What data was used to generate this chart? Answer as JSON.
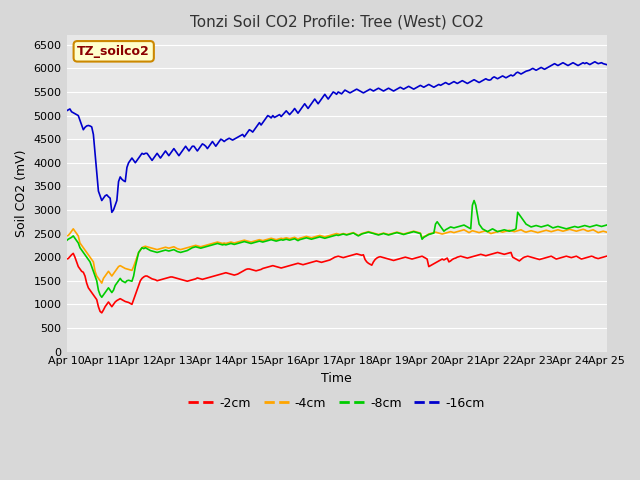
{
  "title": "Tonzi Soil CO2 Profile: Tree (West) CO2",
  "ylabel": "Soil CO2 (mV)",
  "xlabel": "Time",
  "legend_label": "TZ_soilco2",
  "series_labels": [
    "-2cm",
    "-4cm",
    "-8cm",
    "-16cm"
  ],
  "series_colors": [
    "#ff0000",
    "#ffa500",
    "#00cc00",
    "#0000cc"
  ],
  "ylim": [
    0,
    6700
  ],
  "yticks": [
    0,
    500,
    1000,
    1500,
    2000,
    2500,
    3000,
    3500,
    4000,
    4500,
    5000,
    5500,
    6000,
    6500
  ],
  "xtick_labels": [
    "Apr 10",
    "Apr 11",
    "Apr 12",
    "Apr 13",
    "Apr 14",
    "Apr 15",
    "Apr 16",
    "Apr 17",
    "Apr 18",
    "Apr 19",
    "Apr 20",
    "Apr 21",
    "Apr 22",
    "Apr 23",
    "Apr 24",
    "Apr 25"
  ],
  "d2cm": [
    1960,
    1970,
    2010,
    2050,
    2080,
    2000,
    1900,
    1800,
    1750,
    1700,
    1680,
    1600,
    1450,
    1350,
    1300,
    1250,
    1200,
    1150,
    1100,
    950,
    850,
    820,
    880,
    950,
    1000,
    1050,
    1000,
    950,
    1000,
    1050,
    1080,
    1100,
    1120,
    1100,
    1080,
    1060,
    1050,
    1040,
    1020,
    1000,
    1100,
    1200,
    1300,
    1400,
    1500,
    1550,
    1580,
    1600,
    1600,
    1580,
    1560,
    1540,
    1530,
    1520,
    1500,
    1510,
    1520,
    1530,
    1540,
    1550,
    1560,
    1570,
    1580,
    1580,
    1570,
    1560,
    1550,
    1540,
    1530,
    1520,
    1510,
    1500,
    1490,
    1500,
    1510,
    1520,
    1530,
    1540,
    1560,
    1550,
    1540,
    1530,
    1540,
    1550,
    1560,
    1570,
    1580,
    1590,
    1600,
    1610,
    1620,
    1630,
    1640,
    1650,
    1660,
    1670,
    1660,
    1650,
    1640,
    1630,
    1620,
    1630,
    1640,
    1660,
    1680,
    1700,
    1720,
    1740,
    1750,
    1750,
    1740,
    1730,
    1720,
    1710,
    1720,
    1730,
    1740,
    1760,
    1770,
    1780,
    1790,
    1800,
    1810,
    1820,
    1810,
    1800,
    1790,
    1780,
    1770,
    1780,
    1790,
    1800,
    1810,
    1820,
    1830,
    1840,
    1850,
    1860,
    1870,
    1860,
    1850,
    1840,
    1850,
    1860,
    1870,
    1880,
    1890,
    1900,
    1910,
    1920,
    1910,
    1900,
    1890,
    1900,
    1910,
    1920,
    1930,
    1940,
    1960,
    1980,
    2000,
    2010,
    2020,
    2010,
    2000,
    1990,
    2000,
    2010,
    2020,
    2030,
    2040,
    2050,
    2060,
    2070,
    2060,
    2050,
    2040,
    2050,
    1950,
    1900,
    1870,
    1850,
    1830,
    1900,
    1950,
    1980,
    2000,
    2010,
    2000,
    1990,
    1980,
    1970,
    1960,
    1950,
    1940,
    1930,
    1940,
    1950,
    1960,
    1970,
    1980,
    1990,
    2000,
    1990,
    1980,
    1970,
    1960,
    1970,
    1980,
    1990,
    2000,
    2010,
    2020,
    2000,
    1980,
    1960,
    1800,
    1820,
    1840,
    1860,
    1880,
    1900,
    1920,
    1940,
    1960,
    1940,
    1960,
    1980,
    1900,
    1920,
    1950,
    1970,
    1980,
    2000,
    2010,
    2020,
    2010,
    2000,
    1990,
    1980,
    1990,
    2000,
    2010,
    2020,
    2030,
    2040,
    2050,
    2060,
    2050,
    2040,
    2030,
    2040,
    2050,
    2060,
    2070,
    2080,
    2090,
    2100,
    2090,
    2080,
    2070,
    2060,
    2070,
    2080,
    2090,
    2100,
    2000,
    1980,
    1960,
    1940,
    1920,
    1950,
    1980,
    2000,
    2010,
    2020,
    2010,
    2000,
    1990,
    1980,
    1970,
    1960,
    1950,
    1960,
    1970,
    1980,
    1990,
    2000,
    2010,
    2020,
    2000,
    1980,
    1960,
    1970,
    1980,
    1990,
    2000,
    2010,
    2020,
    2010,
    2000,
    1990,
    2000,
    2010,
    2020,
    2000,
    1980,
    1960,
    1970,
    1980,
    1990,
    2000,
    2010,
    2020,
    2010,
    1990,
    1980,
    1970,
    1980,
    1990,
    2000,
    2010,
    2020
  ],
  "d4cm": [
    2450,
    2460,
    2500,
    2550,
    2600,
    2550,
    2500,
    2450,
    2300,
    2250,
    2200,
    2150,
    2100,
    2050,
    2000,
    1950,
    1900,
    1700,
    1600,
    1550,
    1500,
    1450,
    1550,
    1600,
    1650,
    1700,
    1650,
    1600,
    1650,
    1700,
    1750,
    1800,
    1820,
    1800,
    1780,
    1760,
    1750,
    1740,
    1730,
    1720,
    1800,
    1900,
    2000,
    2100,
    2150,
    2200,
    2220,
    2230,
    2220,
    2210,
    2200,
    2190,
    2180,
    2170,
    2160,
    2170,
    2180,
    2190,
    2200,
    2210,
    2200,
    2190,
    2200,
    2210,
    2220,
    2200,
    2180,
    2170,
    2160,
    2170,
    2180,
    2190,
    2200,
    2210,
    2220,
    2230,
    2240,
    2250,
    2240,
    2230,
    2220,
    2230,
    2240,
    2250,
    2260,
    2270,
    2280,
    2290,
    2300,
    2310,
    2320,
    2310,
    2300,
    2290,
    2300,
    2290,
    2300,
    2310,
    2320,
    2310,
    2300,
    2310,
    2320,
    2330,
    2340,
    2350,
    2360,
    2350,
    2340,
    2330,
    2320,
    2330,
    2340,
    2350,
    2360,
    2370,
    2360,
    2350,
    2360,
    2370,
    2380,
    2390,
    2400,
    2390,
    2380,
    2370,
    2380,
    2390,
    2400,
    2390,
    2400,
    2410,
    2400,
    2390,
    2400,
    2410,
    2420,
    2400,
    2380,
    2400,
    2410,
    2420,
    2430,
    2440,
    2430,
    2420,
    2410,
    2420,
    2430,
    2440,
    2450,
    2460,
    2450,
    2440,
    2430,
    2440,
    2450,
    2460,
    2470,
    2480,
    2490,
    2500,
    2490,
    2480,
    2490,
    2500,
    2490,
    2480,
    2490,
    2500,
    2510,
    2520,
    2500,
    2480,
    2460,
    2480,
    2500,
    2510,
    2520,
    2530,
    2540,
    2530,
    2520,
    2510,
    2500,
    2490,
    2480,
    2490,
    2500,
    2510,
    2500,
    2490,
    2480,
    2490,
    2500,
    2510,
    2520,
    2530,
    2520,
    2510,
    2500,
    2490,
    2500,
    2510,
    2520,
    2530,
    2540,
    2550,
    2540,
    2530,
    2520,
    2510,
    2400,
    2430,
    2450,
    2470,
    2490,
    2500,
    2510,
    2520,
    2530,
    2520,
    2510,
    2500,
    2490,
    2500,
    2510,
    2520,
    2530,
    2540,
    2530,
    2520,
    2530,
    2540,
    2550,
    2560,
    2570,
    2580,
    2560,
    2540,
    2520,
    2540,
    2560,
    2550,
    2540,
    2530,
    2520,
    2530,
    2540,
    2550,
    2560,
    2540,
    2520,
    2500,
    2510,
    2520,
    2530,
    2540,
    2550,
    2540,
    2530,
    2540,
    2550,
    2560,
    2570,
    2560,
    2550,
    2540,
    2550,
    2560,
    2570,
    2580,
    2560,
    2540,
    2530,
    2540,
    2550,
    2560,
    2550,
    2540,
    2530,
    2520,
    2530,
    2540,
    2550,
    2560,
    2570,
    2560,
    2550,
    2540,
    2550,
    2560,
    2570,
    2580,
    2570,
    2560,
    2550,
    2560,
    2570,
    2580,
    2590,
    2580,
    2570,
    2560,
    2550,
    2560,
    2570,
    2580,
    2590,
    2580,
    2560,
    2550,
    2560,
    2570,
    2580,
    2560,
    2540,
    2520,
    2530,
    2540,
    2550,
    2540,
    2530,
    2520,
    2510,
    2500,
    2510,
    2520,
    2530,
    2540,
    2550,
    2560,
    2570,
    2560,
    2550,
    2540,
    2550,
    2560,
    2570,
    2580,
    2570,
    2560,
    2550,
    2560,
    2570,
    2580,
    2590,
    2580,
    2570,
    2580,
    2590,
    2580,
    2570,
    2560,
    2570,
    2580,
    2590,
    2580,
    2570
  ],
  "d8cm": [
    2350,
    2380,
    2400,
    2420,
    2450,
    2400,
    2350,
    2300,
    2200,
    2150,
    2100,
    2050,
    2000,
    1950,
    1900,
    1800,
    1700,
    1600,
    1500,
    1300,
    1200,
    1150,
    1200,
    1250,
    1300,
    1350,
    1300,
    1250,
    1300,
    1400,
    1450,
    1500,
    1550,
    1500,
    1480,
    1460,
    1500,
    1510,
    1500,
    1490,
    1600,
    1800,
    1950,
    2100,
    2150,
    2200,
    2180,
    2200,
    2180,
    2160,
    2140,
    2130,
    2120,
    2110,
    2100,
    2110,
    2120,
    2130,
    2140,
    2150,
    2140,
    2130,
    2140,
    2150,
    2160,
    2140,
    2120,
    2110,
    2100,
    2110,
    2120,
    2130,
    2140,
    2160,
    2180,
    2200,
    2210,
    2220,
    2210,
    2200,
    2190,
    2200,
    2210,
    2220,
    2230,
    2240,
    2250,
    2260,
    2270,
    2280,
    2290,
    2280,
    2270,
    2260,
    2270,
    2260,
    2270,
    2280,
    2290,
    2280,
    2270,
    2280,
    2290,
    2300,
    2310,
    2320,
    2330,
    2320,
    2310,
    2300,
    2290,
    2300,
    2310,
    2320,
    2330,
    2340,
    2330,
    2320,
    2330,
    2340,
    2350,
    2360,
    2370,
    2360,
    2350,
    2340,
    2350,
    2360,
    2370,
    2360,
    2370,
    2380,
    2370,
    2360,
    2370,
    2380,
    2390,
    2370,
    2350,
    2370,
    2380,
    2390,
    2400,
    2410,
    2400,
    2390,
    2380,
    2390,
    2400,
    2410,
    2420,
    2430,
    2420,
    2410,
    2400,
    2410,
    2420,
    2430,
    2440,
    2450,
    2460,
    2470,
    2460,
    2470,
    2480,
    2490,
    2480,
    2470,
    2480,
    2490,
    2500,
    2510,
    2490,
    2470,
    2450,
    2470,
    2490,
    2500,
    2510,
    2520,
    2530,
    2520,
    2510,
    2500,
    2490,
    2480,
    2470,
    2480,
    2490,
    2500,
    2490,
    2480,
    2470,
    2480,
    2490,
    2500,
    2510,
    2520,
    2510,
    2500,
    2490,
    2480,
    2490,
    2500,
    2510,
    2520,
    2530,
    2540,
    2530,
    2520,
    2510,
    2500,
    2380,
    2420,
    2440,
    2460,
    2480,
    2490,
    2500,
    2510,
    2700,
    2750,
    2700,
    2650,
    2600,
    2550,
    2580,
    2600,
    2620,
    2640,
    2630,
    2620,
    2630,
    2640,
    2650,
    2660,
    2670,
    2680,
    2660,
    2640,
    2620,
    2600,
    3100,
    3200,
    3100,
    2900,
    2700,
    2650,
    2600,
    2580,
    2560,
    2540,
    2560,
    2580,
    2600,
    2580,
    2560,
    2540,
    2550,
    2560,
    2570,
    2580,
    2570,
    2560,
    2550,
    2560,
    2570,
    2580,
    2600,
    2950,
    2900,
    2850,
    2800,
    2750,
    2700,
    2680,
    2660,
    2640,
    2650,
    2660,
    2670,
    2660,
    2650,
    2640,
    2650,
    2660,
    2670,
    2680,
    2660,
    2640,
    2620,
    2630,
    2640,
    2650,
    2640,
    2630,
    2620,
    2610,
    2600,
    2610,
    2620,
    2630,
    2640,
    2650,
    2640,
    2630,
    2640,
    2650,
    2660,
    2670,
    2660,
    2650,
    2640,
    2650,
    2660,
    2670,
    2680,
    2670,
    2660,
    2650,
    2660,
    2670,
    2680,
    2690,
    2680,
    2660,
    2650,
    2660,
    2670,
    2680,
    2660,
    2640,
    2620,
    2630,
    2640,
    2650,
    2640,
    2630,
    2620,
    2610,
    2600,
    2610,
    2620,
    2630,
    2640,
    2650,
    2660,
    2670,
    2660,
    2650,
    2640,
    2650,
    2660,
    2670,
    2680,
    2670,
    2660,
    2650,
    2660,
    2670,
    2680,
    2690,
    2680,
    2670,
    2680,
    2690,
    2680,
    2670,
    2660,
    2670,
    2680,
    2690,
    2680,
    2670
  ],
  "d16cm": [
    5100,
    5120,
    5140,
    5080,
    5060,
    5040,
    5020,
    5000,
    4900,
    4800,
    4700,
    4750,
    4780,
    4790,
    4780,
    4760,
    4600,
    4200,
    3800,
    3400,
    3300,
    3200,
    3250,
    3300,
    3320,
    3280,
    3250,
    2950,
    3000,
    3100,
    3200,
    3600,
    3700,
    3650,
    3620,
    3600,
    3900,
    4000,
    4050,
    4100,
    4050,
    4000,
    4050,
    4100,
    4150,
    4200,
    4180,
    4200,
    4200,
    4150,
    4100,
    4050,
    4100,
    4150,
    4200,
    4150,
    4100,
    4150,
    4200,
    4250,
    4200,
    4150,
    4200,
    4250,
    4300,
    4250,
    4200,
    4150,
    4200,
    4250,
    4300,
    4350,
    4300,
    4250,
    4300,
    4350,
    4350,
    4300,
    4250,
    4300,
    4350,
    4400,
    4380,
    4350,
    4300,
    4350,
    4400,
    4450,
    4400,
    4350,
    4400,
    4450,
    4500,
    4480,
    4450,
    4480,
    4500,
    4520,
    4500,
    4480,
    4500,
    4520,
    4540,
    4560,
    4580,
    4600,
    4550,
    4600,
    4650,
    4700,
    4680,
    4650,
    4700,
    4750,
    4800,
    4850,
    4800,
    4850,
    4900,
    4950,
    5000,
    4980,
    4950,
    5000,
    4960,
    4980,
    5000,
    5020,
    4980,
    5020,
    5060,
    5100,
    5060,
    5020,
    5060,
    5100,
    5150,
    5100,
    5050,
    5100,
    5150,
    5200,
    5250,
    5200,
    5150,
    5200,
    5250,
    5300,
    5350,
    5300,
    5250,
    5300,
    5350,
    5400,
    5450,
    5400,
    5350,
    5400,
    5450,
    5500,
    5480,
    5450,
    5500,
    5480,
    5460,
    5500,
    5540,
    5520,
    5500,
    5480,
    5500,
    5520,
    5540,
    5560,
    5540,
    5520,
    5500,
    5480,
    5500,
    5520,
    5540,
    5560,
    5540,
    5520,
    5540,
    5560,
    5580,
    5560,
    5540,
    5520,
    5540,
    5560,
    5580,
    5560,
    5540,
    5520,
    5540,
    5560,
    5580,
    5600,
    5580,
    5560,
    5580,
    5600,
    5620,
    5600,
    5580,
    5560,
    5580,
    5600,
    5620,
    5640,
    5620,
    5600,
    5620,
    5640,
    5660,
    5640,
    5620,
    5600,
    5620,
    5640,
    5660,
    5640,
    5660,
    5680,
    5700,
    5680,
    5660,
    5680,
    5700,
    5720,
    5700,
    5680,
    5700,
    5720,
    5740,
    5720,
    5700,
    5680,
    5700,
    5720,
    5740,
    5760,
    5740,
    5720,
    5700,
    5720,
    5740,
    5760,
    5780,
    5760,
    5750,
    5760,
    5800,
    5820,
    5800,
    5780,
    5800,
    5820,
    5840,
    5820,
    5800,
    5820,
    5840,
    5860,
    5840,
    5860,
    5900,
    5920,
    5900,
    5880,
    5900,
    5920,
    5940,
    5950,
    5960,
    5980,
    6000,
    5980,
    5960,
    5980,
    6000,
    6020,
    6000,
    5980,
    6000,
    6020,
    6040,
    6060,
    6080,
    6100,
    6080,
    6060,
    6080,
    6100,
    6120,
    6100,
    6080,
    6060,
    6080,
    6100,
    6120,
    6100,
    6080,
    6060,
    6080,
    6100,
    6120,
    6100,
    6120,
    6100,
    6080,
    6100,
    6120,
    6140,
    6120,
    6100,
    6110,
    6120,
    6100,
    6090,
    6080,
    6100,
    6120,
    6110,
    6100,
    6110,
    6090,
    6080,
    6100,
    6110,
    6120,
    6100,
    6090,
    6080,
    6090,
    6100,
    6110,
    6100,
    6090
  ]
}
